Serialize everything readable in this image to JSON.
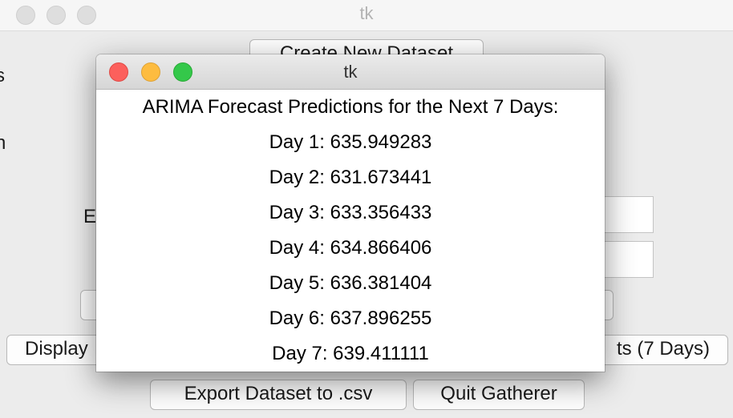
{
  "back_window": {
    "title": "tk",
    "buttons": {
      "create_dataset": "Create New Dataset",
      "display_left": "Display",
      "forecast_right": "ts (7 Days)",
      "export_csv": "Export Dataset to .csv",
      "quit": "Quit Gatherer"
    },
    "partial_label_e": "E",
    "edge_glyph_top": "s",
    "edge_glyph_mid": "n"
  },
  "dialog": {
    "title": "tk",
    "heading": "ARIMA Forecast Predictions for the Next 7 Days:",
    "predictions": [
      "Day 1: 635.949283",
      "Day 2: 631.673441",
      "Day 3: 633.356433",
      "Day 4: 634.866406",
      "Day 5: 636.381404",
      "Day 6: 637.896255",
      "Day 7: 639.411111"
    ]
  }
}
